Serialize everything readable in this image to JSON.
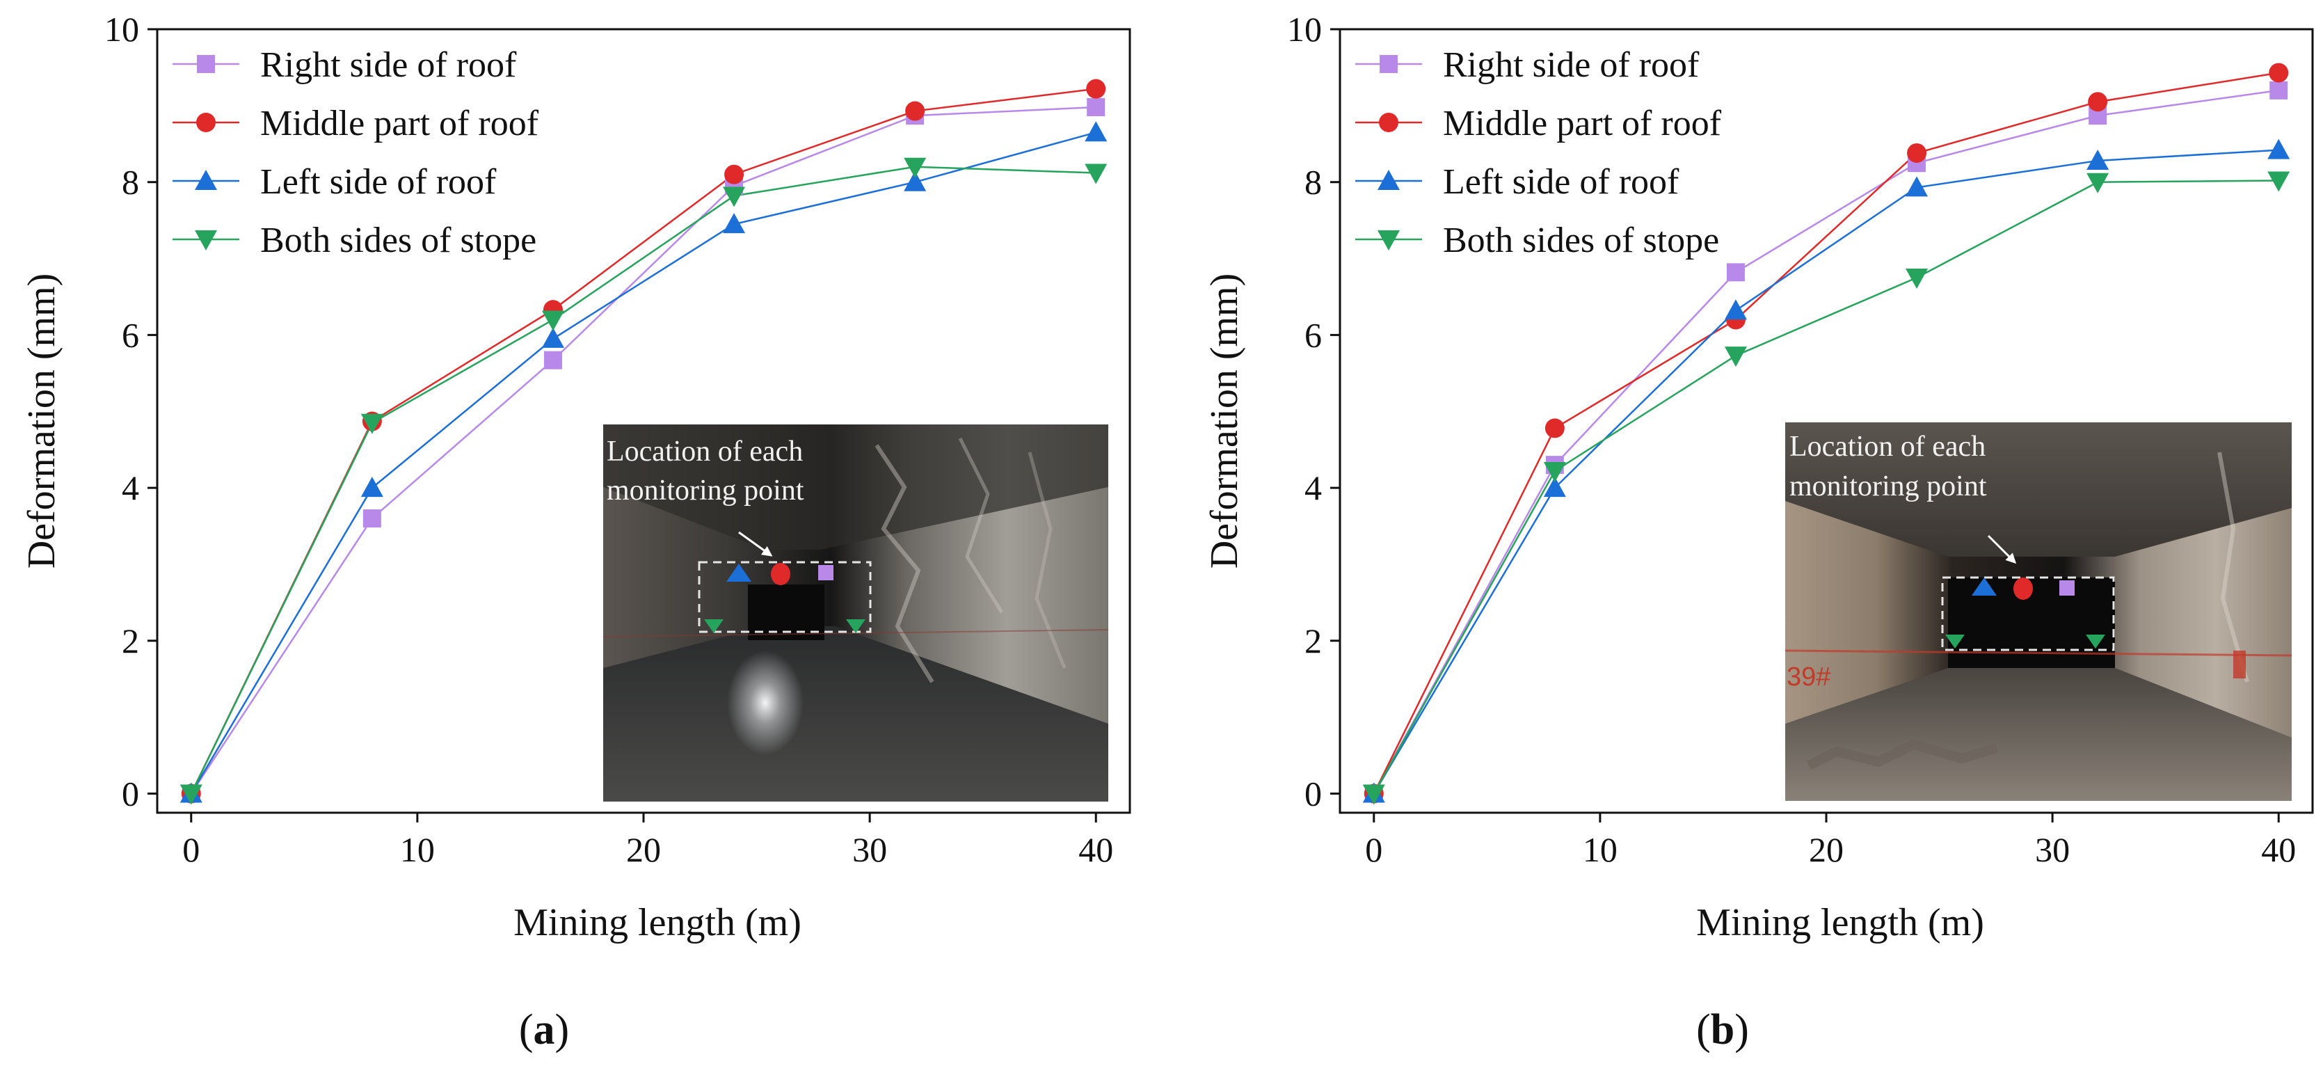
{
  "figure": {
    "panels": [
      {
        "id": "a",
        "label_open": "(",
        "label_letter": "a",
        "label_close": ")",
        "inset_caption_line1": "Location of each",
        "inset_caption_line2": "monitoring point"
      },
      {
        "id": "b",
        "label_open": "(",
        "label_letter": "b",
        "label_close": ")",
        "inset_caption_line1": "Location of each",
        "inset_caption_line2": "monitoring point",
        "inset_tag": "39#"
      }
    ]
  },
  "colors": {
    "right_roof": "#b889e8",
    "middle_roof": "#e02a2a",
    "left_roof": "#1c6fd6",
    "both_stope": "#26a35c",
    "axis": "#111111"
  },
  "chart_data": [
    {
      "type": "line",
      "title": "",
      "xlabel": "Mining length (m)",
      "ylabel": "Deformation (mm)",
      "xlim": [
        -1.5,
        41.5
      ],
      "ylim": [
        -0.25,
        10
      ],
      "xticks": [
        0,
        10,
        20,
        30,
        40
      ],
      "yticks": [
        0,
        2,
        4,
        6,
        8,
        10
      ],
      "x": [
        0,
        8,
        16,
        24,
        32,
        40
      ],
      "legend_position": "top-left",
      "series": [
        {
          "key": "right_roof",
          "name": "Right side of roof",
          "marker": "square",
          "values": [
            0,
            3.6,
            5.67,
            7.95,
            8.87,
            8.98
          ]
        },
        {
          "key": "middle_roof",
          "name": "Middle part of roof",
          "marker": "circle",
          "values": [
            0,
            4.87,
            6.33,
            8.1,
            8.93,
            9.22
          ]
        },
        {
          "key": "left_roof",
          "name": "Left side of roof",
          "marker": "triangle-up",
          "values": [
            0,
            4.0,
            5.95,
            7.45,
            8.0,
            8.65
          ]
        },
        {
          "key": "both_stope",
          "name": "Both sides of stope",
          "marker": "triangle-down",
          "values": [
            0,
            4.85,
            6.2,
            7.82,
            8.2,
            8.12
          ]
        }
      ]
    },
    {
      "type": "line",
      "title": "",
      "xlabel": "Mining length (m)",
      "ylabel": "Deformation (mm)",
      "xlim": [
        -1.5,
        41.5
      ],
      "ylim": [
        -0.25,
        10
      ],
      "xticks": [
        0,
        10,
        20,
        30,
        40
      ],
      "yticks": [
        0,
        2,
        4,
        6,
        8,
        10
      ],
      "x": [
        0,
        8,
        16,
        24,
        32,
        40
      ],
      "legend_position": "top-left",
      "series": [
        {
          "key": "right_roof",
          "name": "Right side of roof",
          "marker": "square",
          "values": [
            0,
            4.3,
            6.82,
            8.25,
            8.87,
            9.2
          ]
        },
        {
          "key": "middle_roof",
          "name": "Middle part of roof",
          "marker": "circle",
          "values": [
            0,
            4.78,
            6.2,
            8.38,
            9.05,
            9.43
          ]
        },
        {
          "key": "left_roof",
          "name": "Left side of roof",
          "marker": "triangle-up",
          "values": [
            0,
            4.0,
            6.32,
            7.93,
            8.28,
            8.42
          ]
        },
        {
          "key": "both_stope",
          "name": "Both sides of stope",
          "marker": "triangle-down",
          "values": [
            0,
            4.22,
            5.73,
            6.75,
            8.0,
            8.02
          ]
        }
      ]
    }
  ]
}
